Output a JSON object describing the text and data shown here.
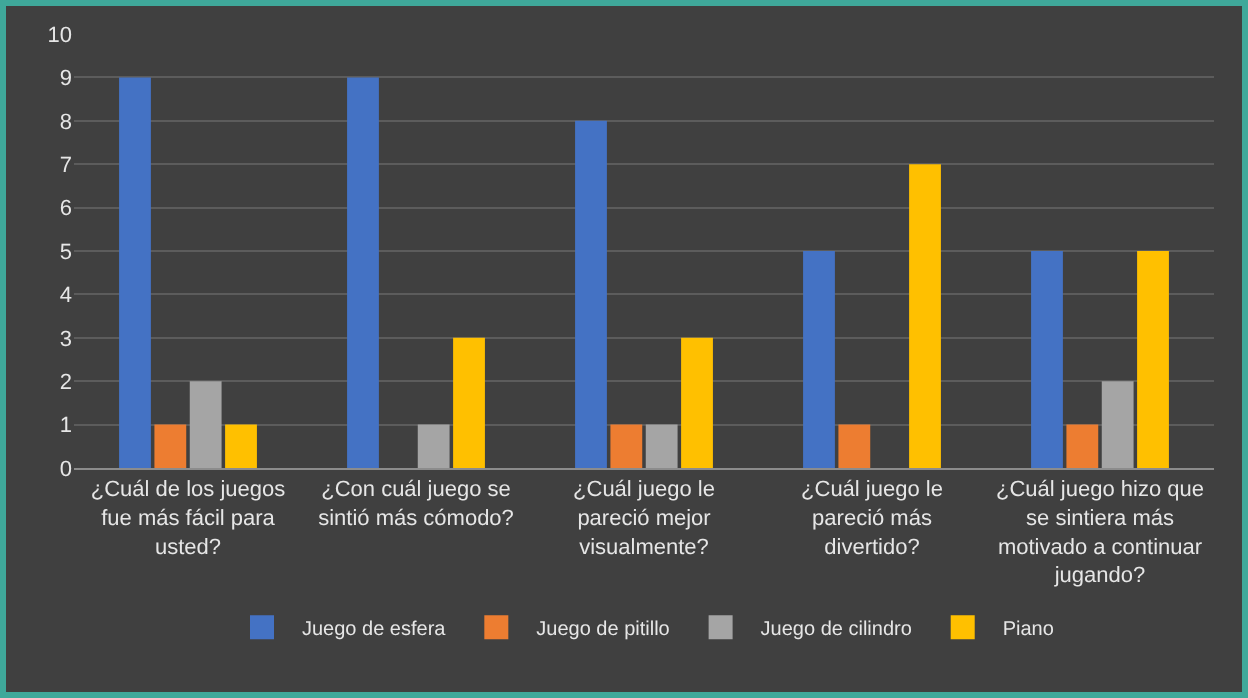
{
  "chart_data": {
    "type": "bar",
    "categories": [
      "¿Cuál de los juegos fue más fácil para usted?",
      "¿Con cuál juego se sintió más cómodo?",
      "¿Cuál juego le pareció mejor visualmente?",
      "¿Cuál juego le pareció más divertido?",
      "¿Cuál juego hizo que se sintiera más motivado a continuar jugando?"
    ],
    "series": [
      {
        "name": "Juego de esfera",
        "color": "#4472c4",
        "values": [
          9,
          9,
          8,
          5,
          5
        ]
      },
      {
        "name": "Juego de pitillo",
        "color": "#ed7d31",
        "values": [
          1,
          0,
          1,
          1,
          1
        ]
      },
      {
        "name": "Juego de cilindro",
        "color": "#a5a5a5",
        "values": [
          2,
          1,
          1,
          0,
          2
        ]
      },
      {
        "name": "Piano",
        "color": "#ffc000",
        "values": [
          1,
          3,
          3,
          7,
          5
        ]
      }
    ],
    "ylim": [
      0,
      10
    ],
    "yticks": [
      0,
      1,
      2,
      3,
      4,
      5,
      6,
      7,
      8,
      9,
      10
    ],
    "grid": "y",
    "legend": "bottom"
  }
}
